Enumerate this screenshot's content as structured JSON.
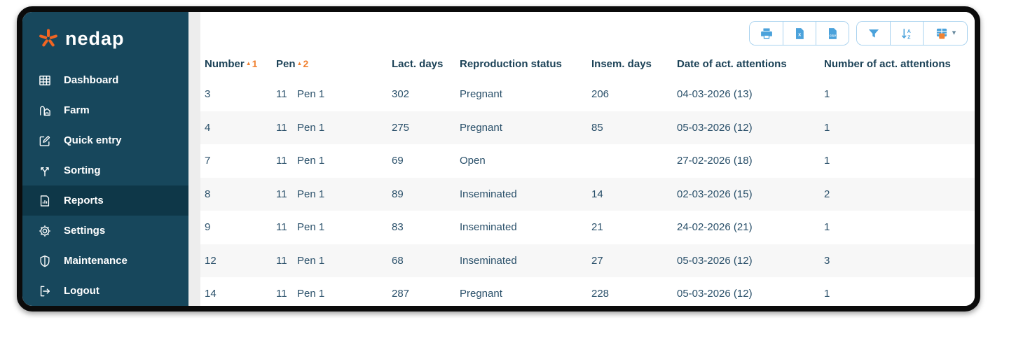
{
  "brand": {
    "name": "nedap"
  },
  "colors": {
    "sidebar_bg": "#17475C",
    "sidebar_active_bg": "#0E3748",
    "accent_orange": "#F08232",
    "logo_star_orange": "#F26522",
    "icon_blue": "#4BA2DB",
    "button_border_blue": "#A9D2EF",
    "row_alt_bg": "#F7F7F7",
    "text_dark": "#1C4257"
  },
  "sidebar": {
    "items": [
      {
        "label": "Dashboard",
        "icon": "dashboard-grid-icon",
        "active": false
      },
      {
        "label": "Farm",
        "icon": "barn-icon",
        "active": false
      },
      {
        "label": "Quick entry",
        "icon": "edit-icon",
        "active": false
      },
      {
        "label": "Sorting",
        "icon": "sort-split-icon",
        "active": false
      },
      {
        "label": "Reports",
        "icon": "report-document-icon",
        "active": true
      },
      {
        "label": "Settings",
        "icon": "gear-icon",
        "active": false
      },
      {
        "label": "Maintenance",
        "icon": "shield-icon",
        "active": false
      },
      {
        "label": "Logout",
        "icon": "logout-icon",
        "active": false
      }
    ]
  },
  "toolbar": {
    "groups": [
      {
        "buttons": [
          {
            "icon": "print-icon"
          },
          {
            "icon": "excel-export-icon"
          },
          {
            "icon": "csv-export-icon"
          }
        ]
      },
      {
        "buttons": [
          {
            "icon": "filter-icon"
          },
          {
            "icon": "sort-az-icon"
          },
          {
            "icon": "column-chooser-icon",
            "has_caret": true
          }
        ]
      }
    ]
  },
  "table": {
    "columns": [
      {
        "label": "Number",
        "sort": {
          "direction": "asc",
          "order": 1
        }
      },
      {
        "label": "Pen",
        "sort": {
          "direction": "asc",
          "order": 2
        }
      },
      {
        "label": "Lact. days"
      },
      {
        "label": "Reproduction status"
      },
      {
        "label": "Insem. days"
      },
      {
        "label": "Date of act. attentions"
      },
      {
        "label": "Number of act. attentions"
      }
    ],
    "rows": [
      {
        "number": "3",
        "pen": "11",
        "pen_name": "Pen 1",
        "lact_days": "302",
        "reproduction_status": "Pregnant",
        "insem_days": "206",
        "date_of_act_attentions": "04-03-2026 (13)",
        "number_of_act_attentions": "1"
      },
      {
        "number": "4",
        "pen": "11",
        "pen_name": "Pen 1",
        "lact_days": "275",
        "reproduction_status": "Pregnant",
        "insem_days": "85",
        "date_of_act_attentions": "05-03-2026 (12)",
        "number_of_act_attentions": "1"
      },
      {
        "number": "7",
        "pen": "11",
        "pen_name": "Pen 1",
        "lact_days": "69",
        "reproduction_status": "Open",
        "insem_days": "",
        "date_of_act_attentions": "27-02-2026 (18)",
        "number_of_act_attentions": "1"
      },
      {
        "number": "8",
        "pen": "11",
        "pen_name": "Pen 1",
        "lact_days": "89",
        "reproduction_status": "Inseminated",
        "insem_days": "14",
        "date_of_act_attentions": "02-03-2026 (15)",
        "number_of_act_attentions": "2"
      },
      {
        "number": "9",
        "pen": "11",
        "pen_name": "Pen 1",
        "lact_days": "83",
        "reproduction_status": "Inseminated",
        "insem_days": "21",
        "date_of_act_attentions": "24-02-2026 (21)",
        "number_of_act_attentions": "1"
      },
      {
        "number": "12",
        "pen": "11",
        "pen_name": "Pen 1",
        "lact_days": "68",
        "reproduction_status": "Inseminated",
        "insem_days": "27",
        "date_of_act_attentions": "05-03-2026 (12)",
        "number_of_act_attentions": "3"
      },
      {
        "number": "14",
        "pen": "11",
        "pen_name": "Pen 1",
        "lact_days": "287",
        "reproduction_status": "Pregnant",
        "insem_days": "228",
        "date_of_act_attentions": "05-03-2026 (12)",
        "number_of_act_attentions": "1"
      }
    ]
  }
}
